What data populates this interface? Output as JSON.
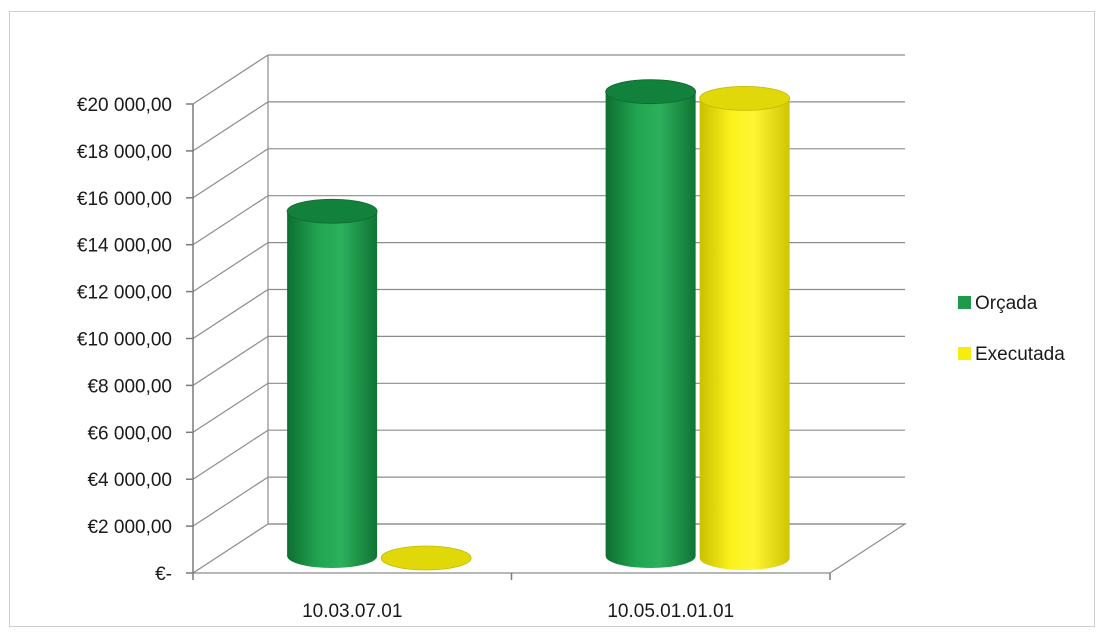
{
  "chart_data": {
    "type": "bar",
    "style": "3d-cylinder",
    "categories": [
      "10.03.07.01",
      "10.05.01.01.01"
    ],
    "series": [
      {
        "name": "Orçada",
        "color": "#1e9a4a",
        "values": [
          14700,
          19800
        ]
      },
      {
        "name": "Executada",
        "color": "#f5ec10",
        "values": [
          0,
          19600
        ]
      }
    ],
    "ylim": [
      0,
      20000
    ],
    "yticks": [
      0,
      2000,
      4000,
      6000,
      8000,
      10000,
      12000,
      14000,
      16000,
      18000,
      20000
    ],
    "ytick_labels": [
      "€-",
      "€2 000,00",
      "€4 000,00",
      "€6 000,00",
      "€8 000,00",
      "€10 000,00",
      "€12 000,00",
      "€14 000,00",
      "€16 000,00",
      "€18 000,00",
      "€20 000,00"
    ],
    "grid": true,
    "legend_position": "right",
    "title": "",
    "xlabel": "",
    "ylabel": ""
  }
}
